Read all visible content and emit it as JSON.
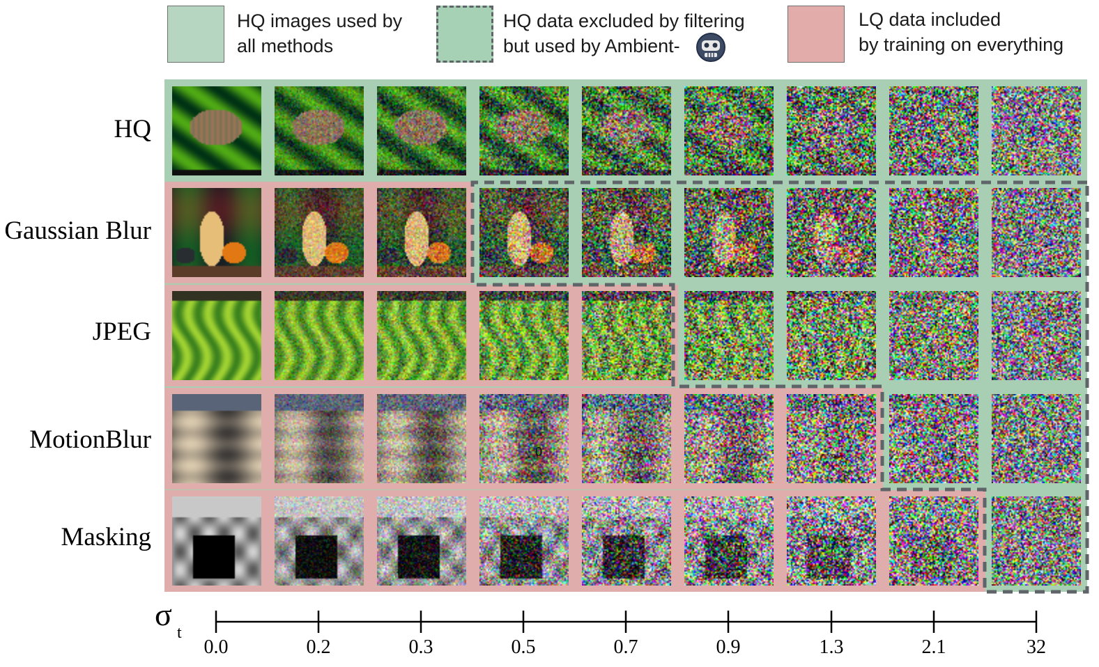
{
  "legend": {
    "items": [
      {
        "name": "hq-all",
        "text_line1": "HQ images used by",
        "text_line2": "all methods",
        "color": "#b7d6c2",
        "border": "#6f6f6f",
        "dashed": false
      },
      {
        "name": "hq-excluded",
        "text_line1": "HQ data excluded by filtering",
        "text_line2": "but used by Ambient-",
        "color": "#a7d1b5",
        "border": "#5f6468",
        "dashed": true
      },
      {
        "name": "lq-included",
        "text_line1": "LQ data included",
        "text_line2": "by training on everything",
        "color": "#e2acab",
        "border": "#6f6f6f",
        "dashed": false
      }
    ],
    "robot_icon": "robot-face-icon"
  },
  "rows": [
    {
      "label": "HQ",
      "kind": "frog",
      "lq_until": -1
    },
    {
      "label": "Gaussian Blur",
      "kind": "squash",
      "lq_until": 2
    },
    {
      "label": "JPEG",
      "kind": "banana",
      "lq_until": 4
    },
    {
      "label": "MotionBlur",
      "kind": "motion",
      "lq_until": 6
    },
    {
      "label": "Masking",
      "kind": "mask",
      "lq_until": 7
    }
  ],
  "axis": {
    "symbol": "σ",
    "subscript": "t",
    "ticks": [
      "0.0",
      "0.2",
      "0.3",
      "0.5",
      "0.7",
      "0.9",
      "1.3",
      "2.1",
      "32"
    ]
  },
  "noise_levels": [
    0,
    0.2,
    0.3,
    0.5,
    0.7,
    0.9,
    1.3,
    2.1,
    32
  ],
  "stray_mark": "0",
  "colors": {
    "green_bg": "#a8cfb4",
    "pink_bg": "#e0adad",
    "dash": "#5e6468",
    "axis": "#000000"
  }
}
